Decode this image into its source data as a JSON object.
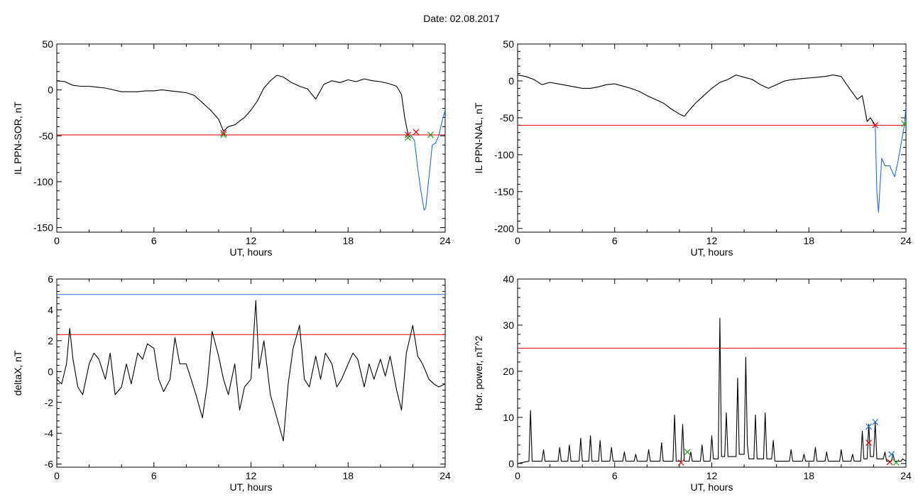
{
  "page": {
    "title": "Date:  02.08.2017"
  },
  "colors": {
    "trace": "#000000",
    "threshold_red": "#e00000",
    "threshold_blue": "#1f6fd6",
    "marker_green": "#1aa31a",
    "marker_blue_x": "#1f6fd6"
  },
  "chart_data": [
    {
      "id": "il-ppn-sor",
      "type": "line",
      "title": "",
      "xlabel": "UT, hours",
      "ylabel": "IL PPN-SOR, nT",
      "xlim": [
        0,
        24
      ],
      "ylim": [
        -155,
        50
      ],
      "xticks": [
        0,
        6,
        12,
        18,
        24
      ],
      "yticks": [
        50,
        0,
        -50,
        -100,
        -150
      ],
      "grid": false,
      "threshold": -49,
      "series": [
        {
          "color": "#000000",
          "x": [
            0,
            0.5,
            1,
            1.5,
            2,
            2.5,
            3,
            3.5,
            4,
            4.5,
            5,
            5.5,
            6,
            6.5,
            7,
            7.5,
            8,
            8.5,
            9,
            9.5,
            10,
            10.3,
            10.6,
            11,
            11.3,
            11.6,
            12,
            12.4,
            12.8,
            13.2,
            13.6,
            14,
            14.5,
            15,
            15.5,
            16,
            16.5,
            17,
            17.5,
            18,
            18.5,
            19,
            19.5,
            20,
            20.5,
            21,
            21.3,
            21.5,
            21.7
          ],
          "y": [
            10,
            9,
            5,
            4,
            4,
            3,
            2,
            0,
            -2,
            -2,
            -2,
            -1,
            -1,
            0,
            -1,
            -2,
            -3,
            -6,
            -14,
            -22,
            -32,
            -45,
            -40,
            -38,
            -34,
            -30,
            -22,
            -12,
            2,
            10,
            16,
            14,
            8,
            4,
            1,
            -10,
            6,
            10,
            8,
            11,
            9,
            12,
            10,
            9,
            7,
            4,
            -5,
            -30,
            -48
          ]
        },
        {
          "color": "#1f6fd6",
          "x": [
            21.7,
            21.9,
            22.1,
            22.3,
            22.5,
            22.7,
            22.8,
            23.0,
            23.2,
            23.4,
            23.6,
            23.8,
            24
          ],
          "y": [
            -48,
            -50,
            -55,
            -85,
            -110,
            -131,
            -128,
            -95,
            -60,
            -58,
            -50,
            -35,
            -22
          ]
        }
      ],
      "markers": [
        {
          "x": 10.3,
          "y": -49,
          "color": "#1aa31a",
          "symbol": "x"
        },
        {
          "x": 10.3,
          "y": -47,
          "color": "#e00000",
          "symbol": "x"
        },
        {
          "x": 21.7,
          "y": -49,
          "color": "#e00000",
          "symbol": "x"
        },
        {
          "x": 21.7,
          "y": -52,
          "color": "#1aa31a",
          "symbol": "x"
        },
        {
          "x": 22.2,
          "y": -46,
          "color": "#e00000",
          "symbol": "x"
        },
        {
          "x": 23.1,
          "y": -49,
          "color": "#1aa31a",
          "symbol": "x"
        }
      ]
    },
    {
      "id": "il-ppn-nal",
      "type": "line",
      "title": "",
      "xlabel": "UT, hours",
      "ylabel": "IL PPN-NAL, nT",
      "xlim": [
        0,
        24
      ],
      "ylim": [
        -205,
        50
      ],
      "xticks": [
        0,
        6,
        12,
        18,
        24
      ],
      "yticks": [
        50,
        0,
        -50,
        -100,
        -150,
        -200
      ],
      "grid": false,
      "threshold": -60,
      "series": [
        {
          "color": "#000000",
          "x": [
            0,
            0.5,
            1,
            1.5,
            2,
            2.5,
            3,
            3.5,
            4,
            4.5,
            5,
            5.5,
            6,
            6.5,
            7,
            7.5,
            8,
            8.5,
            9,
            9.5,
            10,
            10.3,
            10.6,
            11,
            11.5,
            12,
            12.5,
            13,
            13.5,
            14,
            14.5,
            15,
            15.5,
            16,
            16.5,
            17,
            17.5,
            18,
            18.5,
            19,
            19.5,
            20,
            20.5,
            21,
            21.3,
            21.6,
            21.8,
            22.1
          ],
          "y": [
            8,
            6,
            2,
            -5,
            -2,
            -4,
            -6,
            -8,
            -10,
            -10,
            -8,
            -5,
            -4,
            -7,
            -10,
            -14,
            -20,
            -25,
            -30,
            -38,
            -45,
            -48,
            -40,
            -30,
            -20,
            -10,
            -2,
            2,
            8,
            5,
            2,
            -5,
            -10,
            -5,
            0,
            2,
            3,
            4,
            5,
            6,
            8,
            6,
            -10,
            -25,
            -20,
            -55,
            -50,
            -60
          ]
        },
        {
          "color": "#1f6fd6",
          "x": [
            22.1,
            22.2,
            22.3,
            22.5,
            22.7,
            23.0,
            23.3,
            23.5,
            23.7,
            23.9,
            24
          ],
          "y": [
            -60,
            -150,
            -178,
            -105,
            -115,
            -115,
            -130,
            -110,
            -85,
            -60,
            -35
          ]
        }
      ],
      "markers": [
        {
          "x": 22.1,
          "y": -60,
          "color": "#e00000",
          "symbol": "x"
        },
        {
          "x": 23.9,
          "y": -58,
          "color": "#1aa31a",
          "symbol": "x"
        }
      ]
    },
    {
      "id": "deltax",
      "type": "line",
      "title": "",
      "xlabel": "UT, hours",
      "ylabel": "deltaX, nT",
      "xlim": [
        0,
        24
      ],
      "ylim": [
        -6.2,
        6
      ],
      "xticks": [
        0,
        6,
        12,
        18,
        24
      ],
      "yticks": [
        6,
        4,
        2,
        0,
        -2,
        -4,
        -6
      ],
      "grid": false,
      "thresholds": [
        {
          "value": 5.0,
          "color": "#1f6fd6"
        },
        {
          "value": 2.4,
          "color": "#e00000"
        }
      ],
      "series": [
        {
          "color": "#000000",
          "x": [
            0,
            0.3,
            0.6,
            0.8,
            1.0,
            1.3,
            1.6,
            2.0,
            2.3,
            2.6,
            3.0,
            3.3,
            3.6,
            4.0,
            4.3,
            4.6,
            5.0,
            5.3,
            5.6,
            6.0,
            6.3,
            6.6,
            7.0,
            7.3,
            7.6,
            8.0,
            8.3,
            8.6,
            9.0,
            9.3,
            9.6,
            10.0,
            10.3,
            10.6,
            11.0,
            11.3,
            11.6,
            12.0,
            12.3,
            12.5,
            12.8,
            13.2,
            13.6,
            14.0,
            14.3,
            14.6,
            15.0,
            15.3,
            15.6,
            16.0,
            16.3,
            16.6,
            17.0,
            17.3,
            17.6,
            18.0,
            18.3,
            18.6,
            19.0,
            19.3,
            19.6,
            20.0,
            20.3,
            20.6,
            21.0,
            21.3,
            21.6,
            22.0,
            22.3,
            22.6,
            23.0,
            23.3,
            23.6,
            24.0
          ],
          "y": [
            -0.5,
            -0.8,
            0.5,
            2.8,
            0.8,
            -1.0,
            -1.5,
            0.5,
            1.2,
            0.8,
            -0.5,
            1.2,
            -1.5,
            -1.0,
            0.5,
            -0.8,
            1.2,
            0.8,
            1.8,
            1.5,
            -0.5,
            -1.3,
            -0.5,
            2.2,
            0.5,
            0.5,
            -0.5,
            -1.5,
            -3.0,
            -0.8,
            2.6,
            1.0,
            -0.5,
            -1.5,
            0.5,
            -2.5,
            -1.0,
            -0.5,
            4.6,
            0.2,
            2.0,
            -1.5,
            -3.0,
            -4.5,
            -0.8,
            1.5,
            3.0,
            -0.5,
            -1.0,
            1.0,
            -0.5,
            1.2,
            0.5,
            -1.0,
            -0.5,
            0.5,
            1.2,
            0.8,
            -1.0,
            0.5,
            -0.5,
            0.8,
            -0.3,
            1.0,
            -1.2,
            -2.5,
            1.2,
            3.0,
            1.0,
            0.5,
            -0.5,
            -0.8,
            -1.0,
            -0.8
          ]
        }
      ]
    },
    {
      "id": "hor-power",
      "type": "line",
      "title": "",
      "xlabel": "UT, hours",
      "ylabel": "Hor. power, nT^2",
      "xlim": [
        0,
        24
      ],
      "ylim": [
        -0.8,
        40
      ],
      "xticks": [
        0,
        6,
        12,
        18,
        24
      ],
      "yticks": [
        0,
        10,
        20,
        30,
        40
      ],
      "grid": false,
      "threshold": 25,
      "series": [
        {
          "color": "#000000",
          "x": [
            0,
            0.7,
            0.8,
            0.9,
            1.5,
            1.6,
            1.7,
            2.5,
            2.6,
            2.7,
            3.1,
            3.2,
            3.3,
            3.8,
            3.9,
            4.0,
            4.4,
            4.5,
            4.6,
            5.0,
            5.1,
            5.2,
            5.7,
            5.8,
            5.9,
            6.5,
            6.6,
            6.7,
            7.2,
            7.3,
            7.4,
            8.0,
            8.1,
            8.2,
            8.8,
            8.9,
            9.0,
            9.6,
            9.7,
            9.8,
            10.1,
            10.2,
            10.3,
            10.6,
            10.7,
            10.8,
            11.3,
            11.4,
            11.5,
            11.9,
            12.0,
            12.1,
            12.4,
            12.5,
            12.6,
            12.8,
            12.9,
            13.0,
            13.5,
            13.6,
            13.7,
            14.0,
            14.1,
            14.2,
            14.3,
            14.6,
            14.7,
            14.8,
            15.2,
            15.3,
            15.4,
            15.7,
            15.8,
            15.9,
            16.8,
            16.9,
            17.0,
            17.6,
            17.7,
            17.8,
            18.3,
            18.4,
            18.5,
            19.0,
            19.1,
            19.2,
            19.9,
            20.0,
            20.1,
            20.6,
            20.7,
            20.8,
            21.2,
            21.3,
            21.4,
            21.6,
            21.7,
            21.8,
            22.0,
            22.1,
            22.2,
            22.6,
            22.7,
            22.8,
            23.1,
            23.2,
            23.3,
            23.7,
            23.8,
            24.0
          ],
          "y": [
            0,
            0.5,
            11.5,
            0.5,
            0.5,
            3.0,
            0.5,
            0.5,
            3.5,
            0.5,
            0.5,
            4.0,
            0.5,
            0.5,
            5.5,
            0.5,
            0.5,
            6.0,
            0.5,
            0.5,
            5.0,
            0.5,
            0.5,
            3.5,
            0.5,
            0.5,
            2.5,
            0.5,
            0.5,
            2.0,
            0.5,
            0.5,
            3.0,
            0.5,
            0.5,
            4.5,
            0.5,
            0.5,
            10.5,
            0.5,
            0.5,
            8.5,
            0.5,
            0.5,
            2.5,
            0.5,
            0.5,
            4.0,
            0.5,
            0.5,
            6.0,
            1.0,
            1.0,
            31.5,
            1.5,
            1.5,
            11.0,
            1.5,
            1.5,
            18.5,
            2.0,
            2.0,
            23.0,
            4.0,
            1.0,
            1.0,
            10.5,
            1.0,
            1.0,
            11.0,
            1.0,
            1.0,
            5.0,
            0.5,
            0.5,
            3.0,
            0.5,
            0.5,
            2.0,
            0.5,
            0.5,
            3.5,
            0.5,
            0.5,
            2.5,
            0.5,
            0.5,
            3.0,
            0.5,
            0.5,
            2.0,
            0.5,
            0.5,
            7.0,
            1.0,
            1.0,
            8.5,
            1.5,
            1.5,
            9.0,
            1.0,
            1.0,
            2.5,
            0.5,
            0.5,
            2.0,
            0.5,
            0.5,
            1.0,
            0.5
          ]
        }
      ],
      "markers": [
        {
          "x": 10.1,
          "y": 0.2,
          "color": "#e00000",
          "symbol": "x"
        },
        {
          "x": 10.5,
          "y": 2.5,
          "color": "#1aa31a",
          "symbol": "x"
        },
        {
          "x": 21.7,
          "y": 8.0,
          "color": "#1f6fd6",
          "symbol": "x"
        },
        {
          "x": 21.7,
          "y": 4.5,
          "color": "#e00000",
          "symbol": "x"
        },
        {
          "x": 22.1,
          "y": 9.0,
          "color": "#1f6fd6",
          "symbol": "x"
        },
        {
          "x": 23.1,
          "y": 2.0,
          "color": "#1f6fd6",
          "symbol": "x"
        },
        {
          "x": 23.0,
          "y": 0.3,
          "color": "#e00000",
          "symbol": "x"
        },
        {
          "x": 23.4,
          "y": 0.2,
          "color": "#1aa31a",
          "symbol": "x"
        }
      ]
    }
  ]
}
